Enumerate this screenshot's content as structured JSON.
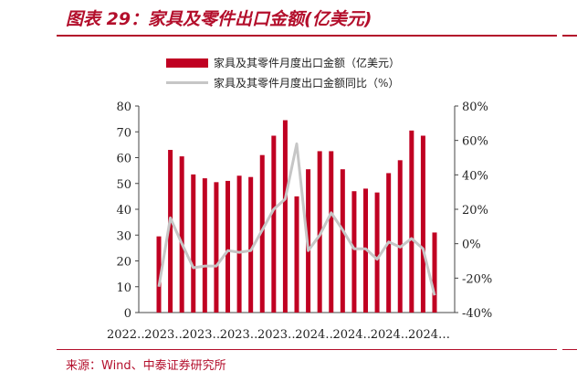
{
  "figure": {
    "title": "图表 29：家具及零件出口金额(亿美元)",
    "source": "来源：Wind、中泰证券研究所"
  },
  "chart_data": {
    "type": "bar",
    "title": "",
    "xlabel": "",
    "ylabel": "",
    "y_left_ticks": [
      "0",
      "10",
      "20",
      "30",
      "40",
      "50",
      "60",
      "70",
      "80"
    ],
    "y_right_ticks": [
      "-40%",
      "-20%",
      "0%",
      "20%",
      "40%",
      "60%",
      "80%"
    ],
    "ylim_left": [
      0,
      80
    ],
    "ylim_right": [
      -40,
      80
    ],
    "x_tick_labels": [
      "2022…",
      "2023…",
      "2023…",
      "2023…",
      "2023…",
      "2024…",
      "2024…",
      "2024…",
      "2024…"
    ],
    "legend_position": "top-center",
    "grid": false,
    "series": [
      {
        "name": "家具及其零件月度出口金额（亿美元）",
        "axis": "left",
        "type": "bar",
        "color": "#c00022",
        "values": [
          29.5,
          63,
          60.5,
          53.5,
          52,
          50.5,
          51,
          53,
          52.5,
          61,
          68.5,
          74.5,
          45,
          55.5,
          62.5,
          62.5,
          55.5,
          47,
          48,
          46.5,
          54,
          59,
          70.5,
          68.5,
          31
        ]
      },
      {
        "name": "家具及其零件月度出口金额同比（%）",
        "axis": "right",
        "type": "line",
        "color": "#c6c6c6",
        "values": [
          -25,
          15,
          0,
          -14,
          -13,
          -13,
          -4,
          -5,
          -4,
          8,
          20,
          26,
          58,
          -4,
          5,
          18,
          8,
          -3,
          -3,
          -9,
          1,
          -2,
          3,
          -3,
          -30
        ]
      }
    ]
  }
}
